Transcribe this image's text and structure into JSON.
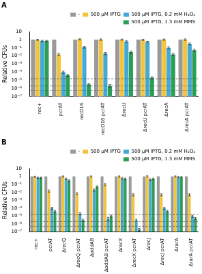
{
  "chart_data": [
    {
      "type": "bar",
      "title": "A",
      "log": "y",
      "grid": false,
      "legend": "top",
      "y_label": "Relative CFUs",
      "ylim": [
        1e-07,
        10
      ],
      "yticks": [
        {
          "value": 10,
          "label": "10"
        },
        {
          "value": 1,
          "label": "1"
        },
        {
          "value": 0.1,
          "label": "10⁻¹"
        },
        {
          "value": 0.01,
          "label": "10⁻²"
        },
        {
          "value": 0.001,
          "label": "10⁻³"
        },
        {
          "value": 0.0001,
          "label": "10⁻⁴"
        },
        {
          "value": 1e-05,
          "label": "10⁻⁵"
        },
        {
          "value": 1e-06,
          "label": "10⁻⁶"
        },
        {
          "value": 1e-07,
          "label": "10⁻⁷"
        }
      ],
      "categories": [
        "rec+",
        "pcrAT",
        "recO16",
        "recO16 pcrAT",
        "ΔrecU",
        "ΔrecU pcrAT",
        "ΔrecA",
        "ΔrecA pcrAT"
      ],
      "reference_lines": [
        1.5e-05,
        2e-06,
        5e-07
      ],
      "series": [
        {
          "name": "-",
          "color": "#9a9a9a",
          "values": [
            1,
            1,
            1,
            1,
            1,
            1,
            1,
            1
          ],
          "errors": [
            0,
            0,
            0,
            0,
            0,
            0,
            0,
            0
          ]
        },
        {
          "name": "500 µM IPTG",
          "color": "#f2c53d",
          "values": [
            0.9,
            0.015,
            1.1,
            1,
            1,
            0.9,
            1,
            1
          ],
          "errors": [
            0.15,
            0.005,
            0.15,
            0.2,
            0.15,
            0.15,
            0.15,
            0.2
          ]
        },
        {
          "name": "500 µM IPTG, 0.2 mM H₂O₂",
          "color": "#45a9d6",
          "values": [
            0.7,
            0.0001,
            0.12,
            0.02,
            0.6,
            0.5,
            0.1,
            0.3
          ],
          "errors": [
            0.15,
            3e-05,
            0.03,
            0.006,
            0.15,
            0.1,
            0.03,
            0.08
          ]
        },
        {
          "name": "500 µM IPTG, 1.3 mM MMS",
          "color": "#2e9e57",
          "values": [
            0.7,
            4e-05,
            3e-06,
            2e-06,
            0.03,
            2e-05,
            0.015,
            0.05
          ],
          "errors": [
            0.15,
            1e-05,
            1e-06,
            8e-07,
            0.01,
            6e-06,
            0.005,
            0.015
          ]
        }
      ]
    },
    {
      "type": "bar",
      "title": "B",
      "log": "y",
      "grid": false,
      "legend": "top",
      "y_label": "Relative CFUs",
      "ylim": [
        1e-07,
        10
      ],
      "yticks": [
        {
          "value": 10,
          "label": "10"
        },
        {
          "value": 1,
          "label": "1"
        },
        {
          "value": 0.1,
          "label": "10⁻¹"
        },
        {
          "value": 0.01,
          "label": "10⁻²"
        },
        {
          "value": 0.001,
          "label": "10⁻³"
        },
        {
          "value": 0.0001,
          "label": "10⁻⁴"
        },
        {
          "value": 1e-05,
          "label": "10⁻⁵"
        },
        {
          "value": 1e-06,
          "label": "10⁻⁶"
        },
        {
          "value": 1e-07,
          "label": "10⁻⁷"
        }
      ],
      "categories": [
        "rec+",
        "pcrAT",
        "ΔrecQ",
        "ΔrecQ pcrAT",
        "ΔaddAB",
        "ΔaddAB pcrAT",
        "ΔrecX",
        "ΔrecX pcrAT",
        "ΔrecJ",
        "ΔrecJ pcrAT",
        "ΔrarA",
        "ΔrarA pcrAT"
      ],
      "reference_lines": [
        1.5e-05,
        2e-06,
        5e-07
      ],
      "series": [
        {
          "name": "-",
          "color": "#9a9a9a",
          "values": [
            1,
            1,
            1,
            1,
            1,
            1,
            1,
            1,
            1,
            1,
            1,
            1
          ],
          "errors": [
            0,
            0,
            0,
            0,
            0,
            0,
            0,
            0,
            0,
            0,
            0,
            0
          ]
        },
        {
          "name": "500 µM IPTG",
          "color": "#f2c53d",
          "values": [
            0.9,
            0.015,
            1,
            0.007,
            1,
            0.1,
            1,
            0.005,
            1,
            0.005,
            1,
            0.005
          ],
          "errors": [
            0.15,
            0.005,
            0.15,
            0.002,
            0.15,
            0.03,
            0.15,
            0.0015,
            0.2,
            0.0015,
            0.15,
            0.0015
          ]
        },
        {
          "name": "500 µM IPTG, 0.2 mM H₂O₂",
          "color": "#45a9d6",
          "values": [
            0.7,
            0.0001,
            0.5,
            2e-05,
            0.02,
            5e-06,
            0.6,
            3e-06,
            0.4,
            0.0001,
            0.8,
            1e-05
          ],
          "errors": [
            0.15,
            3e-05,
            0.1,
            6e-06,
            0.006,
            2e-06,
            0.15,
            1e-06,
            0.1,
            3e-05,
            0.15,
            3e-06
          ]
        },
        {
          "name": "500 µM IPTG, 1.3 mM MMS",
          "color": "#2e9e57",
          "values": [
            0.7,
            4e-05,
            0.3,
            3e-06,
            0.05,
            1e-05,
            0.5,
            2e-07,
            0.5,
            4e-05,
            0.8,
            5e-06
          ],
          "errors": [
            0.15,
            1e-05,
            0.08,
            1e-06,
            0.015,
            3e-06,
            0.1,
            8e-08,
            0.1,
            1e-05,
            0.15,
            1.5e-06
          ]
        }
      ]
    }
  ]
}
